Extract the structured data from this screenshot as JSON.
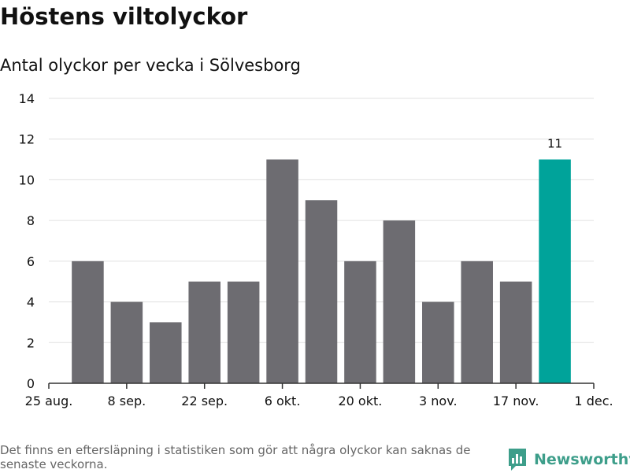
{
  "title": "Höstens viltolyckor",
  "subtitle": "Antal olyckor per vecka i Sölvesborg",
  "footnote": "Det finns en eftersläpning i statistiken som gör att några olyckor kan saknas de senaste veckorna.",
  "brand": {
    "name": "Newsworthy",
    "icon": "newsworthy-logo-icon"
  },
  "colors": {
    "bar": "#6d6c71",
    "highlight": "#00a39a",
    "grid": "#e0e0e0",
    "axis": "#333333",
    "text": "#111111",
    "muted": "#666666",
    "brand": "#3d9e8a"
  },
  "chart_data": {
    "type": "bar",
    "title": "Höstens viltolyckor",
    "subtitle": "Antal olyckor per vecka i Sölvesborg",
    "xlabel": "",
    "ylabel": "",
    "ylim": [
      0,
      14
    ],
    "yticks": [
      0,
      2,
      4,
      6,
      8,
      10,
      12,
      14
    ],
    "grid": true,
    "x_tick_labels": [
      "25 aug.",
      "8 sep.",
      "22 sep.",
      "6 okt.",
      "20 okt.",
      "3 nov.",
      "17 nov.",
      "1 dec."
    ],
    "x_tick_weeks": [
      0,
      2,
      4,
      6,
      8,
      10,
      12,
      14
    ],
    "weeks": [
      1,
      2,
      3,
      4,
      5,
      6,
      7,
      8,
      9,
      10,
      11,
      12,
      13
    ],
    "values": [
      6,
      4,
      3,
      5,
      5,
      11,
      9,
      6,
      8,
      4,
      6,
      5,
      11
    ],
    "highlight_index": 12,
    "data_labels": [
      {
        "index": 12,
        "text": "11"
      }
    ]
  }
}
